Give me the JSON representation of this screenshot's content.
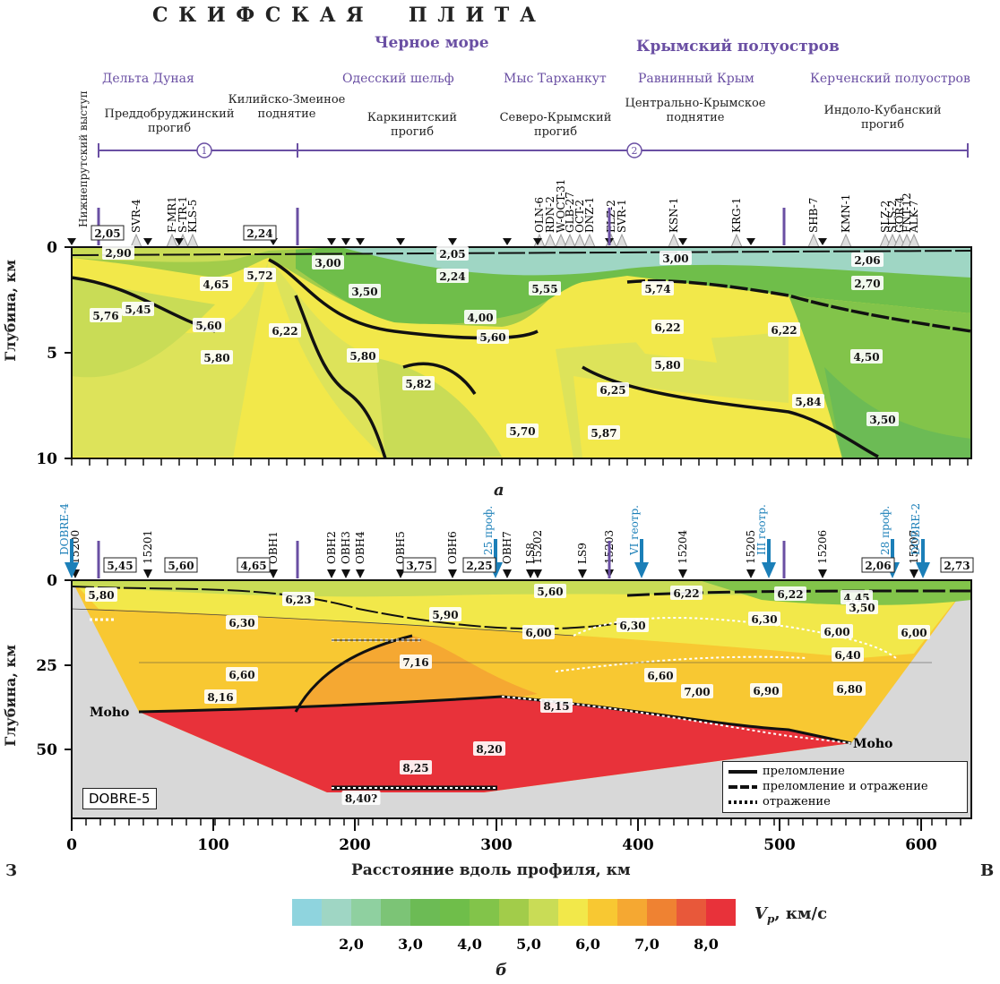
{
  "header": {
    "plate_title": "С К И Ф С К А Я     П Л И Т А",
    "black_sea": "Черное море",
    "crimea": "Крымский полуостров"
  },
  "regions": [
    {
      "label": "Дельта Дуная"
    },
    {
      "label": "Одесский шельф"
    },
    {
      "label": "Мыс Тарханкут"
    },
    {
      "label": "Равнинный Крым"
    },
    {
      "label": "Керченский полуостров"
    }
  ],
  "structures": [
    {
      "label": "Нижнепрутский выступ"
    },
    {
      "label": "Преддобруджинский\nпрогиб"
    },
    {
      "label": "Килийско-Змеиное\nподнятие"
    },
    {
      "label": "Каркинитский\nпрогиб"
    },
    {
      "label": "Северо-Крымский\nпрогиб"
    },
    {
      "label": "Центрально-Крымское\nподнятие"
    },
    {
      "label": "Индоло-Кубанский\nпрогиб"
    }
  ],
  "zones": [
    "1",
    "2"
  ],
  "wells_a": [
    "SVR-4",
    "F-MR1",
    "S-TR-1",
    "KLS-5",
    "OLN-6",
    "RDN-2",
    "W-OCT-31",
    "GLB-27",
    "OCT-2",
    "DNZ-1",
    "ELZ-2",
    "SVR-1",
    "KSN-1",
    "KRG-1",
    "SHB-7",
    "KMN-1",
    "SLZ-2",
    "SLS-2",
    "GOR-4",
    "FNT-12",
    "ALK-7"
  ],
  "panel_a": {
    "ylabel": "Глубина, км",
    "y_ticks": [
      "0",
      "5",
      "10"
    ],
    "letter": "а",
    "velocities": [
      "2,05",
      "2,90",
      "2,24",
      "3,00",
      "2,05",
      "2,24",
      "3,00",
      "2,06",
      "2,70",
      "4,65",
      "5,45",
      "5,72",
      "3,50",
      "4,00",
      "5,55",
      "5,74",
      "5,76",
      "5,60",
      "6,22",
      "5,60",
      "6,22",
      "6,22",
      "5,80",
      "5,80",
      "5,82",
      "5,80",
      "4,50",
      "6,25",
      "5,84",
      "3,50",
      "5,70",
      "5,87"
    ]
  },
  "panel_b": {
    "ylabel": "Глубина, км",
    "y_ticks": [
      "0",
      "25",
      "50"
    ],
    "letter": "б",
    "stations": [
      "15200",
      "15201",
      "OBH1",
      "OBH2",
      "OBH3",
      "OBH4",
      "OBH5",
      "OBH6",
      "OBH7",
      "LS8",
      "15202",
      "LS9",
      "15203",
      "15204",
      "15205",
      "15206",
      "15207"
    ],
    "blue_markers": [
      "DOBRE-4",
      "25 проф.",
      "VI геотр.",
      "III геотр.",
      "28 проф.",
      "DOBRE-2"
    ],
    "top_velocities": [
      "5,45",
      "5,60",
      "4,65",
      "3,75",
      "2,25",
      "2,06",
      "2,73"
    ],
    "velocities": [
      "5,80",
      "6,23",
      "5,60",
      "6,22",
      "6,22",
      "4,45",
      "3,50",
      "5,90",
      "6,30",
      "6,00",
      "6,30",
      "6,30",
      "6,00",
      "6,00",
      "6,60",
      "7,16",
      "6,40",
      "6,60",
      "7,00",
      "6,90",
      "6,80",
      "8,16",
      "8,15",
      "8,20",
      "8,25",
      "8,40?"
    ],
    "moho_left": "Moho",
    "moho_right": "Moho",
    "profile_name": "DOBRE-5",
    "legend": [
      "преломление",
      "преломление и отражение",
      "отражение"
    ],
    "x_ticks": [
      "0",
      "100",
      "200",
      "300",
      "400",
      "500",
      "600"
    ],
    "xlabel": "Расстояние вдоль профиля, км",
    "west": "З",
    "east": "В"
  },
  "colorbar": {
    "label": "V",
    "label_sub": "p",
    "label_unit": ", км/с",
    "ticks": [
      "2,0",
      "3,0",
      "4,0",
      "5,0",
      "6,0",
      "7,0",
      "8,0"
    ],
    "colors": [
      "#8fd4de",
      "#9fd6c4",
      "#8fd0a0",
      "#7cc476",
      "#6cbb55",
      "#6fbe4a",
      "#82c44a",
      "#a2cc4a",
      "#c9dc56",
      "#f2e84a",
      "#f8c832",
      "#f5a832",
      "#ef8232",
      "#e8583a",
      "#e8323a"
    ]
  },
  "colors": {
    "accent_purple": "#6a4fa3",
    "blue_marker": "#1b7fb8"
  }
}
